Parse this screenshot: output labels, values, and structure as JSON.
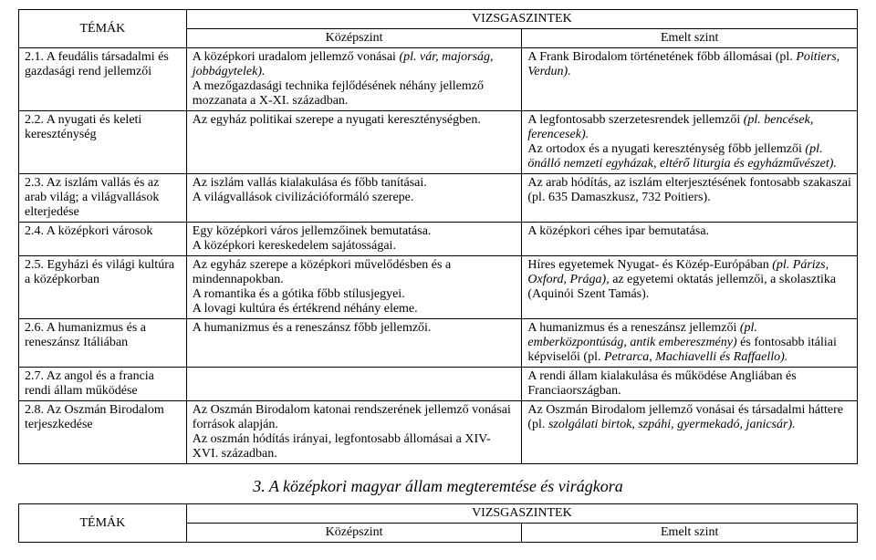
{
  "headers": {
    "temak": "TÉMÁK",
    "vizsgaszintek": "VIZSGASZINTEK",
    "kozepszint": "Középszint",
    "emeltszint": "Emelt szint"
  },
  "rows": [
    {
      "topic": "2.1. A feudális társadalmi és gazdasági rend jellemzői",
      "k": "A középkori uradalom jellemző vonásai <i>(pl. vár, majorság, jobbágytelek).</i><br>A mezőgazdasági technika fejlődésének néhány jellemző mozzanata a X-XI. században.",
      "e": "A Frank Birodalom történetének főbb állomásai (pl. <i>Poitiers, Verdun).</i>"
    },
    {
      "topic": "2.2. A nyugati és keleti kereszténység",
      "k": "Az egyház politikai szerepe a nyugati kereszténységben.",
      "e": "A legfontosabb szerzetesrendek jellemzői <i>(pl. bencések, ferencesek).</i><br>Az ortodox és a nyugati kereszténység főbb jellemzői <i>(pl. önálló nemzeti egyházak, eltérő liturgia és egyházművészet).</i>"
    },
    {
      "topic": "2.3. Az iszlám vallás és az arab világ; a világvallások elterjedése",
      "k": "Az iszlám vallás kialakulása és főbb tanításai.<br>A világvallások civilizációformáló szerepe.",
      "e": "Az arab hódítás, az iszlám elterjesztésének fontosabb szakaszai (pl. 635 Damaszkusz, 732 Poitiers)."
    },
    {
      "topic": "2.4. A középkori városok",
      "k": "Egy középkori város jellemzőinek bemutatása.<br>A középkori kereskedelem sajátosságai.",
      "e": "A középkori céhes ipar bemutatása."
    },
    {
      "topic": "2.5. Egyházi és világi kultúra a középkorban",
      "k": "Az egyház szerepe a középkori művelődésben és a mindennapokban.<br>A romantika és a gótika főbb stílusjegyei.<br>A lovagi kultúra és értékrend néhány eleme.",
      "e": "Híres egyetemek Nyugat- és Közép-Európában <i>(pl. Párizs, Oxford, Prága),</i> az egyetemi oktatás jellemzői, a skolasztika (Aquinói Szent Tamás)."
    },
    {
      "topic": "2.6. A humanizmus és a reneszánsz Itáliában",
      "k": "A humanizmus és a reneszánsz főbb jellemzői.",
      "e": "A humanizmus és a reneszánsz jellemzői <i>(pl. emberközpontúság, antik embereszmény)</i> és fontosabb itáliai képviselői (pl. <i>Petrarca, Machiavelli és Raffaello).</i>"
    },
    {
      "topic": "2.7. Az angol és a francia rendi állam működése",
      "k": "",
      "e": "A rendi állam kialakulása és működése Angliában és Franciaországban."
    },
    {
      "topic": "2.8. Az Oszmán Birodalom terjeszkedése",
      "k": "Az Oszmán Birodalom katonai rendszerének jellemző vonásai források alapján.<br>Az oszmán hódítás irányai, legfontosabb állomásai a XIV-XVI. században.",
      "e": "Az Oszmán Birodalom jellemző vonásai és társadalmi háttere (pl. <i>szolgálati birtok, szpáhi, gyermekadó, janicsár).</i>"
    }
  ],
  "section3": {
    "title": "3. A középkori magyar állam megteremtése és virágkora"
  }
}
